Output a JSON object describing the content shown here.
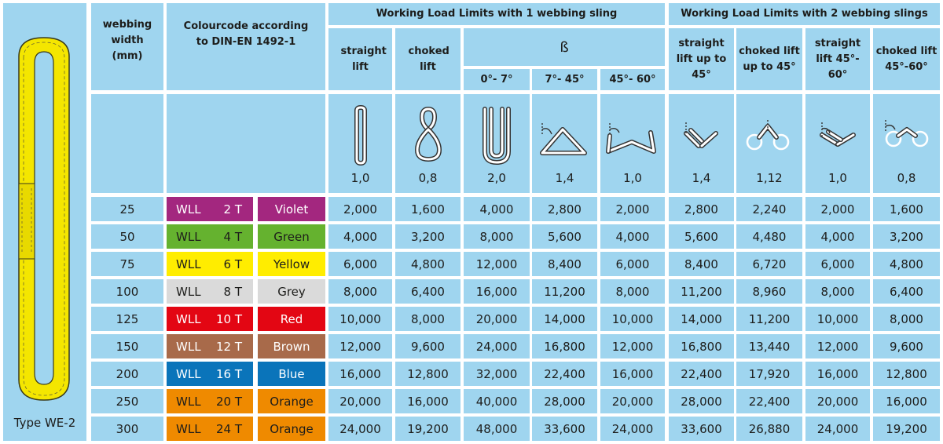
{
  "sling": {
    "type_label": "Type WE-2"
  },
  "headers": {
    "width": "webbing width (mm)",
    "colourcode": "Colourcode according to DIN-EN 1492-1",
    "group1": "Working Load Limits with 1 webbing sling",
    "group2": "Working Load Limits with 2 webbing slings",
    "straight_lift": "straight lift",
    "choked_lift": "choked lift",
    "beta": "ß",
    "b1": "0°- 7°",
    "b2": "7°- 45°",
    "b3": "45°- 60°",
    "s2_straight45": "straight lift up to 45°",
    "s2_choked45": "choked lift up to 45°",
    "s2_straight4560": "straight lift 45°- 60°",
    "s2_choked4560": "choked lift 45°-60°"
  },
  "factors": [
    "1,0",
    "0,8",
    "2,0",
    "1,4",
    "1,0",
    "1,4",
    "1,12",
    "1,0",
    "0,8"
  ],
  "diagram_icons": [
    "straight-lift-icon",
    "choked-lift-icon",
    "basket-0-7-icon",
    "basket-7-45-icon",
    "basket-45-60-icon",
    "two-sling-straight-icon",
    "two-sling-choked-icon",
    "two-sling-straight-45-60-icon",
    "two-sling-choked-45-60-icon"
  ],
  "rows": [
    {
      "width": "25",
      "wll": "WLL",
      "t": "2 T",
      "colour": "Violet",
      "hex": "#a3277f",
      "text": "white",
      "v": [
        "2,000",
        "1,600",
        "4,000",
        "2,800",
        "2,000",
        "2,800",
        "2,240",
        "2,000",
        "1,600"
      ]
    },
    {
      "width": "50",
      "wll": "WLL",
      "t": "4 T",
      "colour": "Green",
      "hex": "#65b22f",
      "text": "dark",
      "v": [
        "4,000",
        "3,200",
        "8,000",
        "5,600",
        "4,000",
        "5,600",
        "4,480",
        "4,000",
        "3,200"
      ]
    },
    {
      "width": "75",
      "wll": "WLL",
      "t": "6 T",
      "colour": "Yellow",
      "hex": "#ffed00",
      "text": "dark",
      "v": [
        "6,000",
        "4,800",
        "12,000",
        "8,400",
        "6,000",
        "8,400",
        "6,720",
        "6,000",
        "4,800"
      ]
    },
    {
      "width": "100",
      "wll": "WLL",
      "t": "8 T",
      "colour": "Grey",
      "hex": "#dadada",
      "text": "dark",
      "v": [
        "8,000",
        "6,400",
        "16,000",
        "11,200",
        "8,000",
        "11,200",
        "8,960",
        "8,000",
        "6,400"
      ]
    },
    {
      "width": "125",
      "wll": "WLL",
      "t": "10 T",
      "colour": "Red",
      "hex": "#e30613",
      "text": "white",
      "v": [
        "10,000",
        "8,000",
        "20,000",
        "14,000",
        "10,000",
        "14,000",
        "11,200",
        "10,000",
        "8,000"
      ]
    },
    {
      "width": "150",
      "wll": "WLL",
      "t": "12 T",
      "colour": "Brown",
      "hex": "#a86a4a",
      "text": "white",
      "v": [
        "12,000",
        "9,600",
        "24,000",
        "16,800",
        "12,000",
        "16,800",
        "13,440",
        "12,000",
        "9,600"
      ]
    },
    {
      "width": "200",
      "wll": "WLL",
      "t": "16 T",
      "colour": "Blue",
      "hex": "#0a74ba",
      "text": "white",
      "v": [
        "16,000",
        "12,800",
        "32,000",
        "22,400",
        "16,000",
        "22,400",
        "17,920",
        "16,000",
        "12,800"
      ]
    },
    {
      "width": "250",
      "wll": "WLL",
      "t": "20 T",
      "colour": "Orange",
      "hex": "#ef8a00",
      "text": "dark",
      "v": [
        "20,000",
        "16,000",
        "40,000",
        "28,000",
        "20,000",
        "28,000",
        "22,400",
        "20,000",
        "16,000"
      ]
    },
    {
      "width": "300",
      "wll": "WLL",
      "t": "24 T",
      "colour": "Orange",
      "hex": "#ef8a00",
      "text": "dark",
      "v": [
        "24,000",
        "19,200",
        "48,000",
        "33,600",
        "24,000",
        "33,600",
        "26,880",
        "24,000",
        "19,200"
      ]
    }
  ]
}
